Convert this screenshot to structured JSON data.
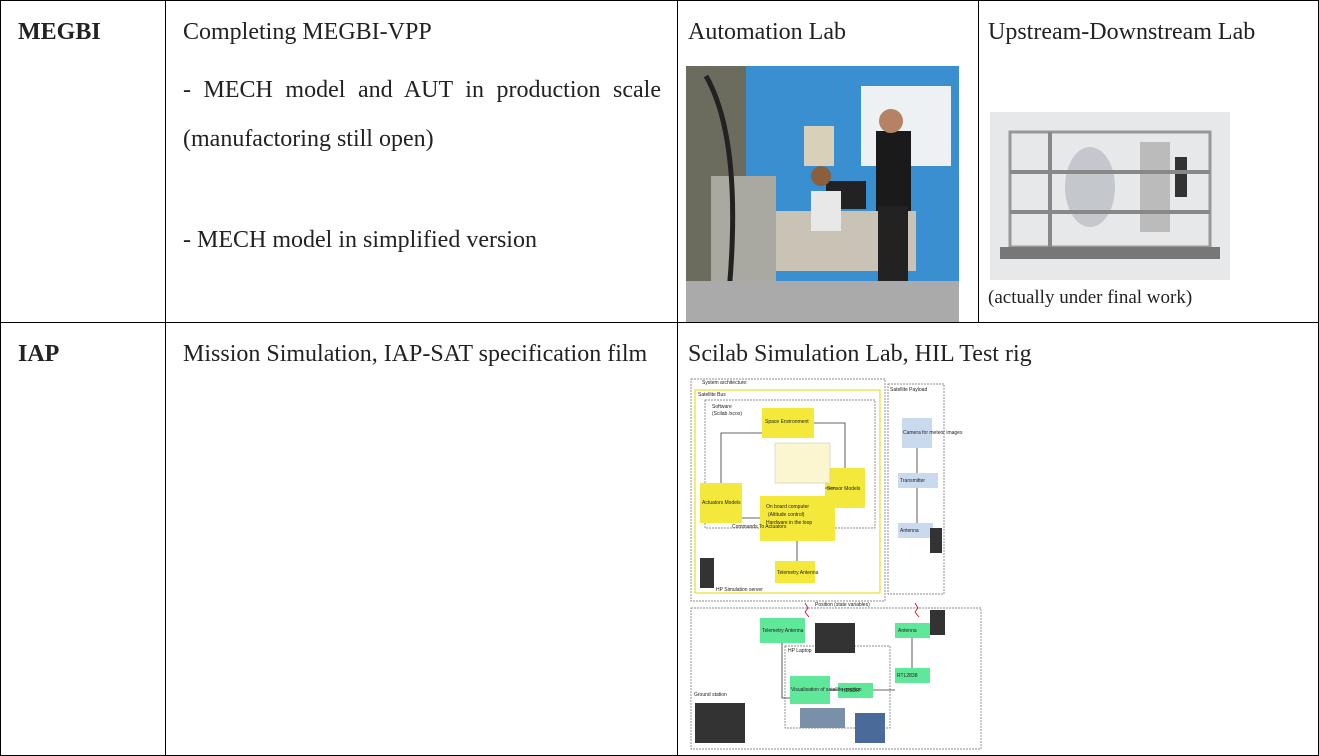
{
  "table": {
    "rows": [
      {
        "partner": "MEGBI",
        "activities": [
          "Completing MEGBI-VPP",
          "- MECH model and AUT in production scale (manufactoring still open)",
          "- MECH model in simplified version"
        ],
        "lab1": {
          "title": "Automation Lab"
        },
        "lab2": {
          "title": "Upstream-Downstream Lab",
          "caption": "(actually under final work)"
        }
      },
      {
        "partner": "IAP",
        "activities": [
          "Mission Simulation, IAP-SAT specification film"
        ],
        "lab1": {
          "title": "Scilab Simulation Lab, HIL Test rig"
        }
      }
    ]
  },
  "diagram": {
    "labels": [
      "System architecture:",
      "Satellite Bus",
      "Software",
      "(Scilab /xcos)",
      "Space Environment",
      "Actuators Models",
      "Sensor Models",
      "On board computer",
      "(Altitude control)",
      "Hardware in the loop",
      "Commands To Actuators",
      "Telemetry Antenna",
      "HP Simulation server",
      "Satellite Payload",
      "Camera for meteor images",
      "Transmitter",
      "Antenna",
      "Position (state variables)",
      "Telemetry Antenna",
      "Antenna",
      "HP Laptop",
      "RTL2838",
      "Ground station",
      "Visualisation of satellite position",
      "HDSDR"
    ]
  }
}
